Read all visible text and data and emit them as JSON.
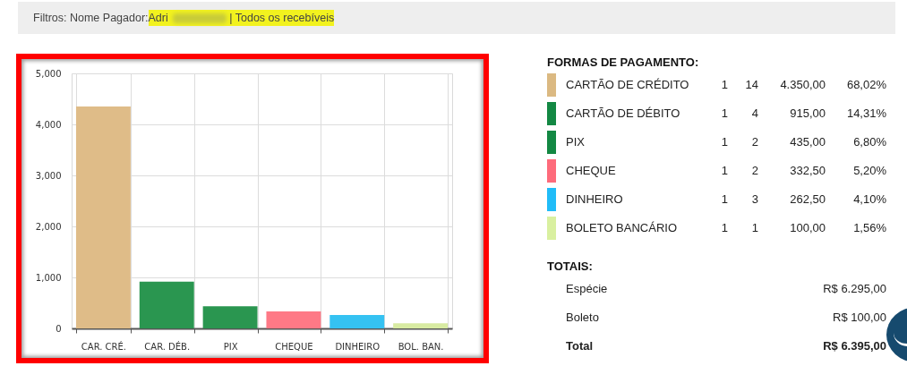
{
  "chart_data": [
    {
      "type": "bar",
      "categories": [
        "CAR. CRÉ.",
        "CAR. DÉB.",
        "PIX",
        "CHEQUE",
        "DINHEIRO",
        "BOL. BAN."
      ],
      "values": [
        4350,
        915,
        435,
        332.5,
        262.5,
        100
      ],
      "colors": [
        "#dfbc88",
        "#2a9650",
        "#2a9650",
        "#fe7986",
        "#35c2f2",
        "#d8eba2"
      ],
      "ylim": [
        0,
        5000
      ],
      "yticks": [
        0,
        {
          "value": 1000,
          "label": "1,000"
        },
        {
          "value": 2000,
          "label": "2,000"
        },
        {
          "value": 3000,
          "label": "3,000"
        },
        {
          "value": 4000,
          "label": "4,000"
        },
        {
          "value": 5000,
          "label": "5,000"
        }
      ],
      "grid": true,
      "annotations": [
        "Filtros: Nome Pagador:",
        "Adri",
        "| Todos os recebíveis"
      ]
    },
    {
      "type": "other",
      "title": "FORMAS DE PAGAMENTO:",
      "categories": [
        "CARTÃO DE CRÉDITO",
        "CARTÃO DE DÉBITO",
        "PIX",
        "CHEQUE",
        "DINHEIRO",
        "BOLETO BANCÁRIO"
      ],
      "colors": [
        "#dbb982",
        "#138843",
        "#138843",
        "#fe6b7b",
        "#20bcf8",
        "#d9f0a0"
      ],
      "annotations": [
        "1",
        "14",
        "4.350,00",
        "68,02%",
        "1",
        "4",
        "915,00",
        "14,31%",
        "1",
        "2",
        "435,00",
        "6,80%",
        "1",
        "2",
        "332,50",
        "5,20%",
        "1",
        "3",
        "262,50",
        "4,10%",
        "1",
        "1",
        "100,00",
        "1,56%"
      ]
    },
    {
      "type": "other",
      "title": "TOTAIS:",
      "categories": [
        "Espécie",
        "Boleto",
        "Total"
      ],
      "annotations": [
        "R$ 6.295,00",
        "R$ 100,00",
        "R$ 6.395,00"
      ]
    }
  ]
}
